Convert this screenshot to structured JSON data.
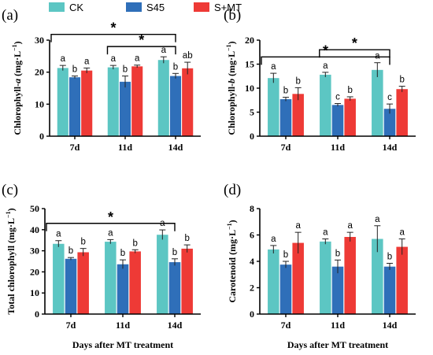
{
  "legend": {
    "items": [
      {
        "label": "CK",
        "color": "#5cc6c3"
      },
      {
        "label": "S45",
        "color": "#2f6fb9"
      },
      {
        "label": "S+MT",
        "color": "#ee3a36"
      }
    ]
  },
  "chart_data": [
    {
      "panel_label": "(a)",
      "type": "bar",
      "ylabel_main": "Chlorophyll-",
      "ylabel_italic": "a",
      "ylabel_unit": "(mg·L",
      "ylabel_sup": "−1",
      "ylabel_close": ")",
      "xlabel": "",
      "ylim": [
        0,
        30
      ],
      "yticks": [
        "0",
        "10",
        "20",
        "30"
      ],
      "categories": [
        "7d",
        "11d",
        "14d"
      ],
      "series": [
        {
          "name": "CK",
          "values": [
            21.3,
            21.5,
            23.8
          ],
          "errors": [
            0.8,
            0.6,
            1.0
          ],
          "letters": [
            "a",
            "a",
            "a"
          ]
        },
        {
          "name": "S45",
          "values": [
            18.4,
            17.0,
            18.8
          ],
          "errors": [
            0.4,
            1.8,
            0.8
          ],
          "letters": [
            "b",
            "b",
            "b"
          ]
        },
        {
          "name": "S+MT",
          "values": [
            20.5,
            21.8,
            21.2
          ],
          "errors": [
            0.8,
            0.4,
            1.9
          ],
          "letters": [
            "a",
            "a",
            "ab"
          ]
        }
      ],
      "significance": [
        {
          "from": "7d",
          "to": "14d",
          "label": "*",
          "level": 31.8
        },
        {
          "from": "11d",
          "to": "14d",
          "label": "*",
          "level": 28.0
        }
      ]
    },
    {
      "panel_label": "(b)",
      "type": "bar",
      "ylabel_main": "Chlorophyll-",
      "ylabel_italic": "b",
      "ylabel_unit": "(mg·L",
      "ylabel_sup": "−1",
      "ylabel_close": ")",
      "xlabel": "",
      "ylim": [
        0,
        20
      ],
      "yticks": [
        "0",
        "5",
        "10",
        "15",
        "20"
      ],
      "categories": [
        "7d",
        "11d",
        "14d"
      ],
      "series": [
        {
          "name": "CK",
          "values": [
            12.1,
            12.8,
            13.8
          ],
          "errors": [
            1.0,
            0.5,
            1.5
          ],
          "letters": [
            "a",
            "a",
            "a"
          ]
        },
        {
          "name": "S45",
          "values": [
            7.7,
            6.5,
            5.7
          ],
          "errors": [
            0.4,
            0.3,
            1.0
          ],
          "letters": [
            "b",
            "c",
            "c"
          ]
        },
        {
          "name": "S+MT",
          "values": [
            8.8,
            7.8,
            9.8
          ],
          "errors": [
            1.3,
            0.4,
            0.6
          ],
          "letters": [
            "b",
            "b",
            "b"
          ]
        }
      ],
      "significance": [
        {
          "from": "7d",
          "to": "14d",
          "label": "*",
          "level": 16.5
        },
        {
          "from": "11d",
          "to": "14d",
          "label": "*",
          "level": 18.0
        }
      ]
    },
    {
      "panel_label": "(c)",
      "type": "bar",
      "ylabel_main": "Total chlorophyll",
      "ylabel_italic": "",
      "ylabel_unit": "(mg·L",
      "ylabel_sup": "−1",
      "ylabel_close": ")",
      "xlabel": "Days after MT treatment",
      "ylim": [
        0,
        50
      ],
      "yticks": [
        "0",
        "10",
        "20",
        "30",
        "40",
        "50"
      ],
      "categories": [
        "7d",
        "11d",
        "14d"
      ],
      "series": [
        {
          "name": "CK",
          "values": [
            33.3,
            34.3,
            37.6
          ],
          "errors": [
            1.5,
            1.0,
            2.3
          ],
          "letters": [
            "a",
            "a",
            "a"
          ]
        },
        {
          "name": "S45",
          "values": [
            26.2,
            23.6,
            24.6
          ],
          "errors": [
            0.6,
            2.1,
            1.6
          ],
          "letters": [
            "b",
            "b",
            "b"
          ]
        },
        {
          "name": "S+MT",
          "values": [
            29.3,
            29.7,
            31.0
          ],
          "errors": [
            1.8,
            0.8,
            1.8
          ],
          "letters": [
            "b",
            "b",
            "b"
          ]
        }
      ],
      "significance": [
        {
          "from": "7d",
          "to": "14d",
          "label": "*",
          "level": 43.0
        }
      ]
    },
    {
      "panel_label": "(d)",
      "type": "bar",
      "ylabel_main": "Carotenoid",
      "ylabel_italic": "",
      "ylabel_unit": "(mg·L",
      "ylabel_sup": "−1",
      "ylabel_close": ")",
      "xlabel": "Days after MT treatment",
      "ylim": [
        0,
        8
      ],
      "yticks": [
        "0",
        "2",
        "4",
        "6",
        "8"
      ],
      "categories": [
        "7d",
        "11d",
        "14d"
      ],
      "series": [
        {
          "name": "CK",
          "values": [
            4.9,
            5.5,
            5.7
          ],
          "errors": [
            0.3,
            0.2,
            1.0
          ],
          "letters": [
            "a",
            "a",
            "a"
          ]
        },
        {
          "name": "S45",
          "values": [
            3.75,
            3.6,
            3.6
          ],
          "errors": [
            0.25,
            0.5,
            0.25
          ],
          "letters": [
            "b",
            "b",
            "b"
          ]
        },
        {
          "name": "S+MT",
          "values": [
            5.4,
            5.85,
            5.1
          ],
          "errors": [
            0.8,
            0.35,
            0.6
          ],
          "letters": [
            "a",
            "a",
            "a"
          ]
        }
      ],
      "significance": []
    }
  ]
}
